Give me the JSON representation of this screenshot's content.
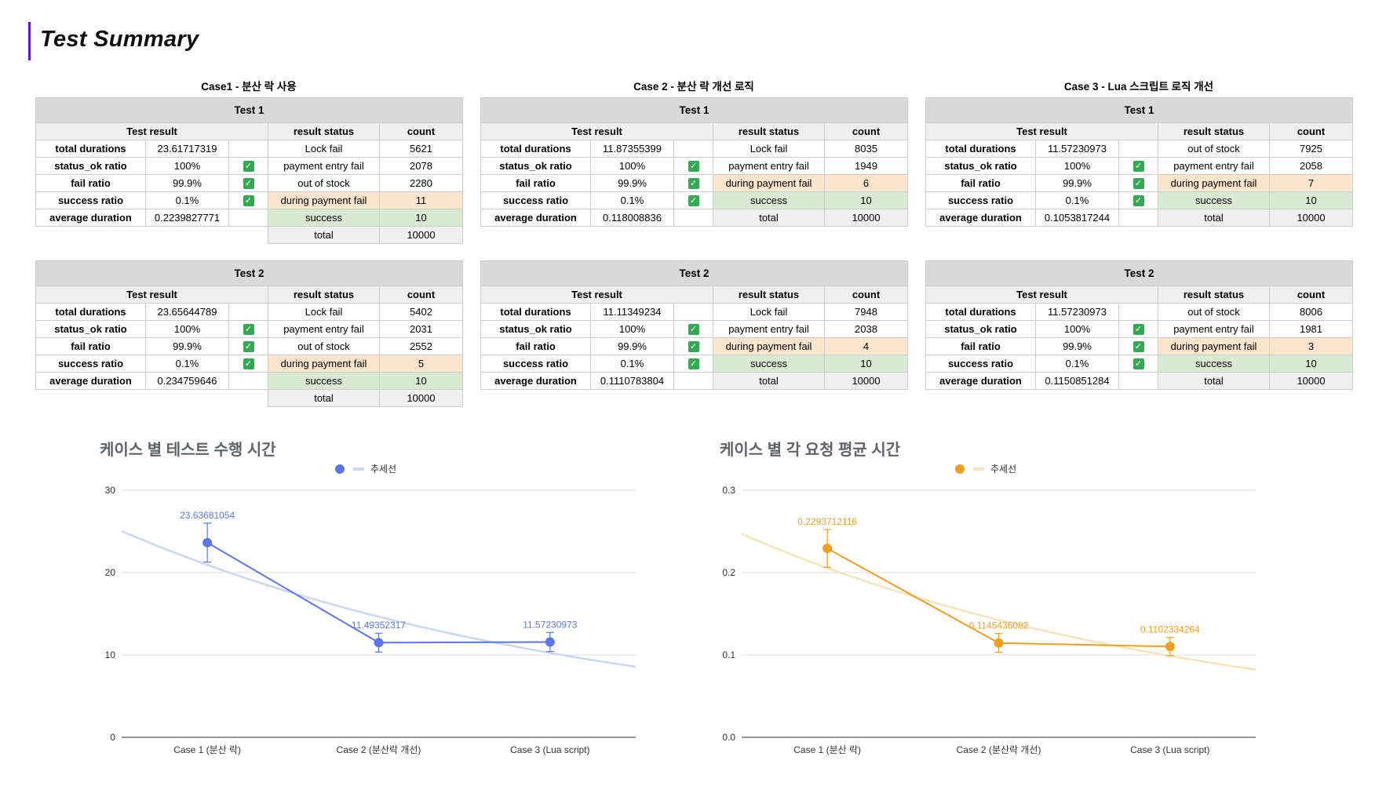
{
  "page_title": "Test Summary",
  "cases": [
    {
      "title": "Case1 - 분산 락 사용",
      "tests": [
        {
          "name": "Test 1",
          "result_header": "Test result",
          "status_header": "result status",
          "count_header": "count",
          "metrics": [
            {
              "label": "total durations",
              "value": "23.61717319",
              "check": false
            },
            {
              "label": "status_ok ratio",
              "value": "100%",
              "check": true
            },
            {
              "label": "fail ratio",
              "value": "99.9%",
              "check": true
            },
            {
              "label": "success ratio",
              "value": "0.1%",
              "check": true
            },
            {
              "label": "average duration",
              "value": "0.2239827771",
              "check": false
            }
          ],
          "statuses": [
            {
              "status": "Lock fail",
              "count": "5621",
              "tone": ""
            },
            {
              "status": "payment entry fail",
              "count": "2078",
              "tone": ""
            },
            {
              "status": "out of stock",
              "count": "2280",
              "tone": ""
            },
            {
              "status": "during payment fail",
              "count": "11",
              "tone": "orange"
            },
            {
              "status": "success",
              "count": "10",
              "tone": "green"
            },
            {
              "status": "total",
              "count": "10000",
              "tone": "gray"
            }
          ]
        },
        {
          "name": "Test 2",
          "result_header": "Test result",
          "status_header": "result status",
          "count_header": "count",
          "metrics": [
            {
              "label": "total durations",
              "value": "23.65644789",
              "check": false
            },
            {
              "label": "status_ok ratio",
              "value": "100%",
              "check": true
            },
            {
              "label": "fail ratio",
              "value": "99.9%",
              "check": true
            },
            {
              "label": "success ratio",
              "value": "0.1%",
              "check": true
            },
            {
              "label": "average duration",
              "value": "0.234759646",
              "check": false
            }
          ],
          "statuses": [
            {
              "status": "Lock fail",
              "count": "5402",
              "tone": ""
            },
            {
              "status": "payment entry fail",
              "count": "2031",
              "tone": ""
            },
            {
              "status": "out of stock",
              "count": "2552",
              "tone": ""
            },
            {
              "status": "during payment fail",
              "count": "5",
              "tone": "orange"
            },
            {
              "status": "success",
              "count": "10",
              "tone": "green"
            },
            {
              "status": "total",
              "count": "10000",
              "tone": "gray"
            }
          ]
        }
      ]
    },
    {
      "title": "Case 2 - 분산 락 개선 로직",
      "tests": [
        {
          "name": "Test 1",
          "result_header": "Test result",
          "status_header": "result status",
          "count_header": "count",
          "metrics": [
            {
              "label": "total durations",
              "value": "11.87355399",
              "check": false
            },
            {
              "label": "status_ok ratio",
              "value": "100%",
              "check": true
            },
            {
              "label": "fail ratio",
              "value": "99.9%",
              "check": true
            },
            {
              "label": "success ratio",
              "value": "0.1%",
              "check": true
            },
            {
              "label": "average duration",
              "value": "0.118008836",
              "check": false
            }
          ],
          "statuses": [
            {
              "status": "Lock fail",
              "count": "8035",
              "tone": ""
            },
            {
              "status": "payment entry fail",
              "count": "1949",
              "tone": ""
            },
            {
              "status": "during payment fail",
              "count": "6",
              "tone": "orange"
            },
            {
              "status": "success",
              "count": "10",
              "tone": "green"
            },
            {
              "status": "total",
              "count": "10000",
              "tone": "gray"
            }
          ]
        },
        {
          "name": "Test 2",
          "result_header": "Test result",
          "status_header": "result status",
          "count_header": "count",
          "metrics": [
            {
              "label": "total durations",
              "value": "11.11349234",
              "check": false
            },
            {
              "label": "status_ok ratio",
              "value": "100%",
              "check": true
            },
            {
              "label": "fail ratio",
              "value": "99.9%",
              "check": true
            },
            {
              "label": "success ratio",
              "value": "0.1%",
              "check": true
            },
            {
              "label": "average duration",
              "value": "0.1110783804",
              "check": false
            }
          ],
          "statuses": [
            {
              "status": "Lock fail",
              "count": "7948",
              "tone": ""
            },
            {
              "status": "payment entry fail",
              "count": "2038",
              "tone": ""
            },
            {
              "status": "during payment fail",
              "count": "4",
              "tone": "orange"
            },
            {
              "status": "success",
              "count": "10",
              "tone": "green"
            },
            {
              "status": "total",
              "count": "10000",
              "tone": "gray"
            }
          ]
        }
      ]
    },
    {
      "title": "Case 3 - Lua 스크립트 로직 개선",
      "tests": [
        {
          "name": "Test 1",
          "result_header": "Test result",
          "status_header": "result status",
          "count_header": "count",
          "metrics": [
            {
              "label": "total durations",
              "value": "11.57230973",
              "check": false
            },
            {
              "label": "status_ok ratio",
              "value": "100%",
              "check": true
            },
            {
              "label": "fail ratio",
              "value": "99.9%",
              "check": true
            },
            {
              "label": "success ratio",
              "value": "0.1%",
              "check": true
            },
            {
              "label": "average duration",
              "value": "0.1053817244",
              "check": false
            }
          ],
          "statuses": [
            {
              "status": "out of stock",
              "count": "7925",
              "tone": ""
            },
            {
              "status": "payment entry fail",
              "count": "2058",
              "tone": ""
            },
            {
              "status": "during payment fail",
              "count": "7",
              "tone": "orange"
            },
            {
              "status": "success",
              "count": "10",
              "tone": "green"
            },
            {
              "status": "total",
              "count": "10000",
              "tone": "gray"
            }
          ]
        },
        {
          "name": "Test 2",
          "result_header": "Test result",
          "status_header": "result status",
          "count_header": "count",
          "metrics": [
            {
              "label": "total durations",
              "value": "11.57230973",
              "check": false
            },
            {
              "label": "status_ok ratio",
              "value": "100%",
              "check": true
            },
            {
              "label": "fail ratio",
              "value": "99.9%",
              "check": true
            },
            {
              "label": "success ratio",
              "value": "0.1%",
              "check": true
            },
            {
              "label": "average duration",
              "value": "0.1150851284",
              "check": false
            }
          ],
          "statuses": [
            {
              "status": "out of stock",
              "count": "8006",
              "tone": ""
            },
            {
              "status": "payment entry fail",
              "count": "1981",
              "tone": ""
            },
            {
              "status": "during payment fail",
              "count": "3",
              "tone": "orange"
            },
            {
              "status": "success",
              "count": "10",
              "tone": "green"
            },
            {
              "status": "total",
              "count": "10000",
              "tone": "gray"
            }
          ]
        }
      ]
    }
  ],
  "chart_data": [
    {
      "type": "line",
      "title": "케이스 별 테스트 수행 시간",
      "categories": [
        "Case 1 (분산 락)",
        "Case 2 (분산락 개선)",
        "Case 3 (Lua script)"
      ],
      "series": [
        {
          "values": [
            23.63681054,
            11.49352317,
            11.57230973
          ],
          "data_labels": [
            "23.63681054",
            "11.49352317",
            "11.57230973"
          ],
          "color": "#5b76e8",
          "error_bars": true
        }
      ],
      "trendline": {
        "name": "추세선",
        "color": "#c9d6f5"
      },
      "ylim": [
        0,
        30
      ],
      "yticks": [
        0,
        10,
        20,
        30
      ],
      "ytick_labels": [
        "0",
        "10",
        "20",
        "30"
      ],
      "legend": "top",
      "grid": true
    },
    {
      "type": "line",
      "title": "케이스 별 각 요청 평균 시간",
      "categories": [
        "Case 1 (분산 락)",
        "Case 2 (분산락 개선)",
        "Case 3 (Lua script)"
      ],
      "series": [
        {
          "values": [
            0.2293712116,
            0.1145436082,
            0.1102334264
          ],
          "data_labels": [
            "0.2293712116",
            "0.1145436082",
            "0.1102334264"
          ],
          "color": "#f29d1f",
          "error_bars": true
        }
      ],
      "trendline": {
        "name": "추세선",
        "color": "#fbe3b9"
      },
      "ylim": [
        0,
        0.3
      ],
      "yticks": [
        0,
        0.1,
        0.2,
        0.3
      ],
      "ytick_labels": [
        "0.0",
        "0.1",
        "0.2",
        "0.3"
      ],
      "legend": "top",
      "grid": true
    }
  ]
}
